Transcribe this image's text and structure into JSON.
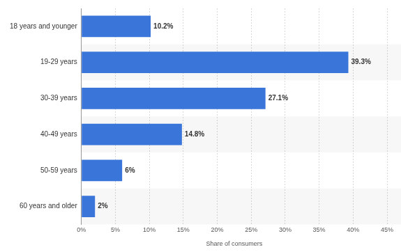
{
  "chart_data": {
    "type": "bar",
    "orientation": "horizontal",
    "x_label": "Share of consumers",
    "categories": [
      "18 years and younger",
      "19-29 years",
      "30-39 years",
      "40-49 years",
      "50-59 years",
      "60 years and older"
    ],
    "values": [
      10.2,
      39.3,
      27.1,
      14.8,
      6,
      2
    ],
    "value_labels": [
      "10.2%",
      "39.3%",
      "27.1%",
      "14.8%",
      "6%",
      "2%"
    ],
    "color": "#3a75d9",
    "xlim": [
      0,
      45
    ],
    "xticks": [
      {
        "value": 0,
        "label": "0%"
      },
      {
        "value": 5,
        "label": "5%"
      },
      {
        "value": 10,
        "label": "10%"
      },
      {
        "value": 15,
        "label": "15%"
      },
      {
        "value": 20,
        "label": "20%"
      },
      {
        "value": 25,
        "label": "25%"
      },
      {
        "value": 30,
        "label": "30%"
      },
      {
        "value": 35,
        "label": "35%"
      },
      {
        "value": 40,
        "label": "40%"
      },
      {
        "value": 45,
        "label": "45%"
      }
    ],
    "grid": true,
    "data_labels": true
  }
}
